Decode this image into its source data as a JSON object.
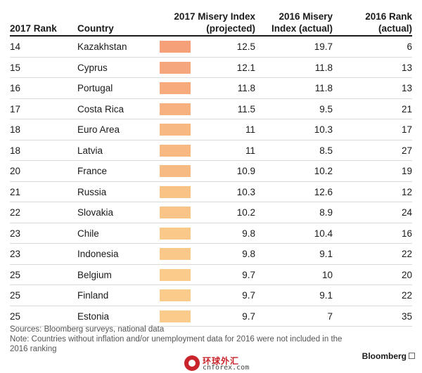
{
  "chart_data": {
    "type": "table",
    "columns": [
      {
        "key": "rank2017",
        "label": "2017 Rank"
      },
      {
        "key": "country",
        "label": "Country"
      },
      {
        "key": "misery2017",
        "label_line1": "2017 Misery Index",
        "label_line2": "(projected)"
      },
      {
        "key": "misery2016",
        "label_line1": "2016 Misery",
        "label_line2": "Index (actual)"
      },
      {
        "key": "rank2016",
        "label_line1": "2016 Rank",
        "label_line2": "(actual)"
      }
    ],
    "rows": [
      {
        "rank2017": "14",
        "country": "Kazakhstan",
        "misery2017": "12.5",
        "misery2016": "19.7",
        "rank2016": "6",
        "color": "#f6a07a"
      },
      {
        "rank2017": "15",
        "country": "Cyprus",
        "misery2017": "12.1",
        "misery2016": "11.8",
        "rank2016": "13",
        "color": "#f6a67c"
      },
      {
        "rank2017": "16",
        "country": "Portugal",
        "misery2017": "11.8",
        "misery2016": "11.8",
        "rank2016": "13",
        "color": "#f7ab7d"
      },
      {
        "rank2017": "17",
        "country": "Costa Rica",
        "misery2017": "11.5",
        "misery2016": "9.5",
        "rank2016": "21",
        "color": "#f7b07f"
      },
      {
        "rank2017": "18",
        "country": "Euro Area",
        "misery2017": "11",
        "misery2016": "10.3",
        "rank2016": "17",
        "color": "#f8b882"
      },
      {
        "rank2017": "18",
        "country": "Latvia",
        "misery2017": "11",
        "misery2016": "8.5",
        "rank2016": "27",
        "color": "#f8b882"
      },
      {
        "rank2017": "20",
        "country": "France",
        "misery2017": "10.9",
        "misery2016": "10.2",
        "rank2016": "19",
        "color": "#f8ba83"
      },
      {
        "rank2017": "21",
        "country": "Russia",
        "misery2017": "10.3",
        "misery2016": "12.6",
        "rank2016": "12",
        "color": "#f9c386"
      },
      {
        "rank2017": "22",
        "country": "Slovakia",
        "misery2017": "10.2",
        "misery2016": "8.9",
        "rank2016": "24",
        "color": "#f9c487"
      },
      {
        "rank2017": "23",
        "country": "Chile",
        "misery2017": "9.8",
        "misery2016": "10.4",
        "rank2016": "16",
        "color": "#fac989"
      },
      {
        "rank2017": "23",
        "country": "Indonesia",
        "misery2017": "9.8",
        "misery2016": "9.1",
        "rank2016": "22",
        "color": "#fac989"
      },
      {
        "rank2017": "25",
        "country": "Belgium",
        "misery2017": "9.7",
        "misery2016": "10",
        "rank2016": "20",
        "color": "#facb8a"
      },
      {
        "rank2017": "25",
        "country": "Finland",
        "misery2017": "9.7",
        "misery2016": "9.1",
        "rank2016": "22",
        "color": "#facb8a"
      },
      {
        "rank2017": "25",
        "country": "Estonia",
        "misery2017": "9.7",
        "misery2016": "7",
        "rank2016": "35",
        "color": "#facb8a"
      }
    ]
  },
  "footer": {
    "sources": "Sources: Bloomberg surveys, national data",
    "note": "Note: Countries without inflation and/or unemployment data for 2016 were not included in the 2016 ranking"
  },
  "brand": "Bloomberg",
  "watermark": {
    "text": "环球外汇",
    "sub": "cnforex.com"
  }
}
